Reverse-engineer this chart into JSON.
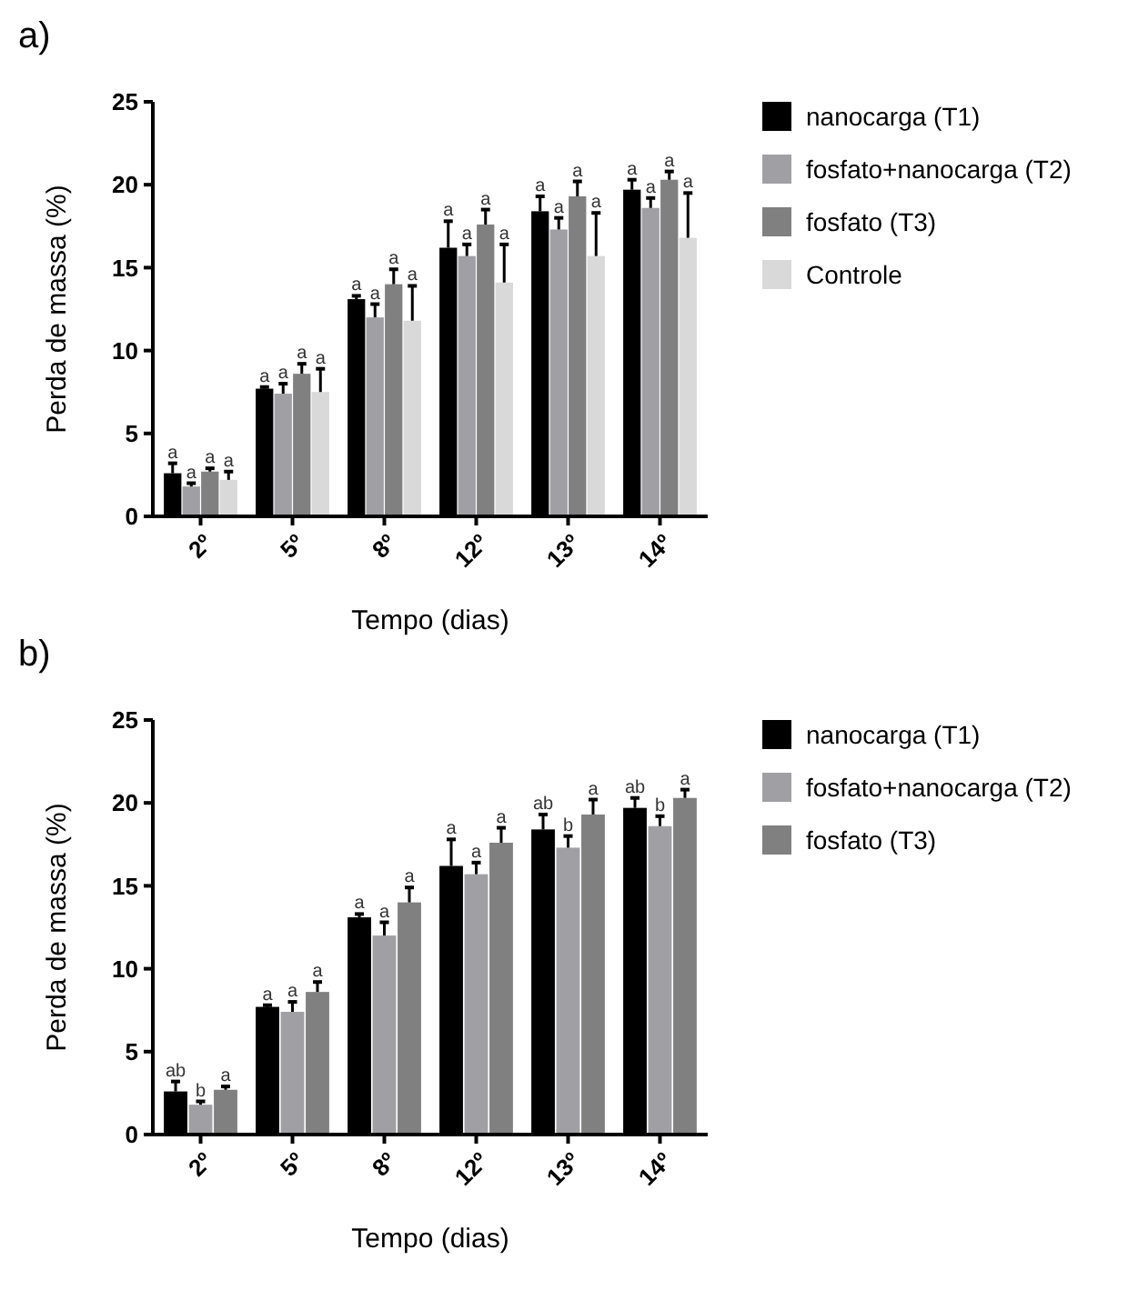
{
  "chart_data": [
    {
      "type": "bar",
      "title": "a)",
      "xlabel": "Tempo (dias)",
      "ylabel": "Perda de massa (%)",
      "categories": [
        "2º",
        "5º",
        "8º",
        "12º",
        "13º",
        "14º"
      ],
      "ylim": [
        0,
        25
      ],
      "yticks": [
        0,
        5,
        10,
        15,
        20,
        25
      ],
      "grid": false,
      "legend": "top right",
      "series": [
        {
          "name": "nanocarga (T1)",
          "color": "#000000",
          "values": [
            2.6,
            7.7,
            13.1,
            16.2,
            18.4,
            19.7
          ],
          "errors": [
            [
              2.6,
              3.2
            ],
            [
              7.7,
              7.8
            ],
            [
              13.1,
              13.3
            ],
            [
              16.2,
              17.8
            ],
            [
              18.4,
              19.3
            ],
            [
              19.7,
              20.3
            ]
          ],
          "value_labels": [
            "a",
            "a",
            "a",
            "a",
            "a",
            "a"
          ]
        },
        {
          "name": "fosfato+nanocarga (T2)",
          "color": "#a0a0a4",
          "values": [
            1.8,
            7.4,
            12.0,
            15.7,
            17.3,
            18.6
          ],
          "errors": [
            [
              1.8,
              2.0
            ],
            [
              7.4,
              8.0
            ],
            [
              12.0,
              12.8
            ],
            [
              15.7,
              16.4
            ],
            [
              17.3,
              18.0
            ],
            [
              18.6,
              19.2
            ]
          ],
          "value_labels": [
            "a",
            "a",
            "a",
            "a",
            "a",
            "a"
          ]
        },
        {
          "name": "fosfato (T3)",
          "color": "#808080",
          "values": [
            2.7,
            8.6,
            14.0,
            17.6,
            19.3,
            20.3
          ],
          "errors": [
            [
              2.7,
              2.9
            ],
            [
              8.6,
              9.2
            ],
            [
              14.0,
              14.9
            ],
            [
              17.6,
              18.5
            ],
            [
              19.3,
              20.2
            ],
            [
              20.3,
              20.8
            ]
          ],
          "value_labels": [
            "a",
            "a",
            "a",
            "a",
            "a",
            "a"
          ]
        },
        {
          "name": "Controle",
          "color": "#d9d9d9",
          "values": [
            2.2,
            7.5,
            11.8,
            14.1,
            15.7,
            16.8
          ],
          "errors": [
            [
              2.2,
              2.7
            ],
            [
              7.5,
              8.9
            ],
            [
              11.8,
              13.9
            ],
            [
              14.1,
              16.4
            ],
            [
              15.7,
              18.3
            ],
            [
              16.8,
              19.5
            ]
          ],
          "value_labels": [
            "a",
            "a",
            "a",
            "a",
            "a",
            "a"
          ]
        }
      ]
    },
    {
      "type": "bar",
      "title": "b)",
      "xlabel": "Tempo (dias)",
      "ylabel": "Perda de massa (%)",
      "categories": [
        "2º",
        "5º",
        "8º",
        "12º",
        "13º",
        "14º"
      ],
      "ylim": [
        0,
        25
      ],
      "yticks": [
        0,
        5,
        10,
        15,
        20,
        25
      ],
      "grid": false,
      "legend": "top right",
      "series": [
        {
          "name": "nanocarga (T1)",
          "color": "#000000",
          "values": [
            2.6,
            7.7,
            13.1,
            16.2,
            18.4,
            19.7
          ],
          "errors": [
            [
              2.6,
              3.2
            ],
            [
              7.7,
              7.8
            ],
            [
              13.1,
              13.3
            ],
            [
              16.2,
              17.8
            ],
            [
              18.4,
              19.3
            ],
            [
              19.7,
              20.3
            ]
          ],
          "value_labels": [
            "ab",
            "a",
            "a",
            "a",
            "ab",
            "ab"
          ]
        },
        {
          "name": "fosfato+nanocarga (T2)",
          "color": "#a0a0a4",
          "values": [
            1.8,
            7.4,
            12.0,
            15.7,
            17.3,
            18.6
          ],
          "errors": [
            [
              1.8,
              2.0
            ],
            [
              7.4,
              8.0
            ],
            [
              12.0,
              12.8
            ],
            [
              15.7,
              16.4
            ],
            [
              17.3,
              18.0
            ],
            [
              18.6,
              19.2
            ]
          ],
          "value_labels": [
            "b",
            "a",
            "a",
            "a",
            "b",
            "b"
          ]
        },
        {
          "name": "fosfato (T3)",
          "color": "#808080",
          "values": [
            2.7,
            8.6,
            14.0,
            17.6,
            19.3,
            20.3
          ],
          "errors": [
            [
              2.7,
              2.9
            ],
            [
              8.6,
              9.2
            ],
            [
              14.0,
              14.9
            ],
            [
              17.6,
              18.5
            ],
            [
              19.3,
              20.2
            ],
            [
              20.3,
              20.8
            ]
          ],
          "value_labels": [
            "a",
            "a",
            "a",
            "a",
            "a",
            "a"
          ]
        }
      ]
    }
  ]
}
